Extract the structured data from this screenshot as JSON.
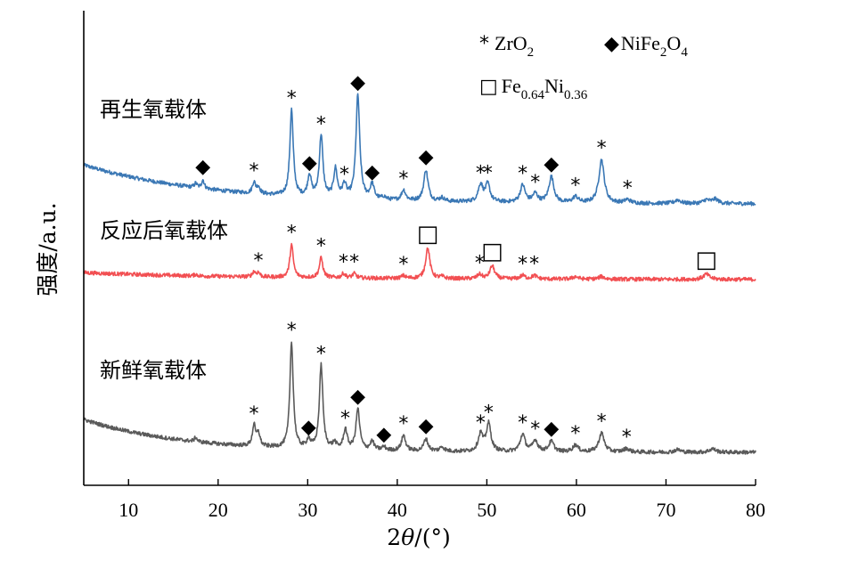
{
  "chart_data": {
    "type": "line",
    "x_axis": {
      "label_prefix": "2",
      "label_var": "θ",
      "label_suffix": "/(°)",
      "xlim": [
        5,
        80
      ],
      "ticks": [
        10,
        20,
        30,
        40,
        50,
        60,
        70,
        80
      ],
      "tick_labels": [
        "10",
        "20",
        "30",
        "40",
        "50",
        "60",
        "70",
        "80"
      ]
    },
    "y_axis": {
      "label": "强度/a.u.",
      "ticks": []
    },
    "legend": {
      "placement": "top-right",
      "entries": [
        {
          "symbol": "*",
          "base": "ZrO",
          "sub": "2",
          "rest": "",
          "sub2": ""
        },
        {
          "symbol": "◆",
          "base": "NiFe",
          "sub": "2",
          "rest": "O",
          "sub2": "4"
        },
        {
          "symbol": "□",
          "base": "Fe",
          "sub": "0.64",
          "rest": "Ni",
          "sub2": "0.36"
        }
      ]
    },
    "markers": {
      "zro2": "*",
      "nife2o4": "◆",
      "feni": "□"
    },
    "series": [
      {
        "name": "再生氧载体",
        "color": "#3b78b5",
        "offset": 2.0,
        "baseline_start": 0.45,
        "baseline_end": 0.0,
        "decay": 0.07,
        "peaks": [
          {
            "x": 17.5,
            "h": 0.05,
            "m": ""
          },
          {
            "x": 18.3,
            "h": 0.1,
            "m": "◆"
          },
          {
            "x": 24.0,
            "h": 0.13,
            "m": "*"
          },
          {
            "x": 24.5,
            "h": 0.08,
            "m": ""
          },
          {
            "x": 28.2,
            "h": 1.0,
            "m": "*"
          },
          {
            "x": 30.2,
            "h": 0.25,
            "m": "◆"
          },
          {
            "x": 31.5,
            "h": 0.72,
            "m": "*"
          },
          {
            "x": 33.1,
            "h": 0.33,
            "m": ""
          },
          {
            "x": 34.1,
            "h": 0.15,
            "m": "*"
          },
          {
            "x": 35.6,
            "h": 1.2,
            "m": "◆"
          },
          {
            "x": 37.2,
            "h": 0.17,
            "m": "◆"
          },
          {
            "x": 38.5,
            "h": 0.03,
            "m": ""
          },
          {
            "x": 40.7,
            "h": 0.12,
            "m": "*"
          },
          {
            "x": 43.2,
            "h": 0.36,
            "m": "◆"
          },
          {
            "x": 45.0,
            "h": 0.04,
            "m": ""
          },
          {
            "x": 49.3,
            "h": 0.2,
            "m": "*"
          },
          {
            "x": 50.1,
            "h": 0.2,
            "m": "*"
          },
          {
            "x": 54.0,
            "h": 0.2,
            "m": "*"
          },
          {
            "x": 55.4,
            "h": 0.1,
            "m": "*"
          },
          {
            "x": 57.2,
            "h": 0.3,
            "m": "◆"
          },
          {
            "x": 59.9,
            "h": 0.07,
            "m": "*"
          },
          {
            "x": 62.8,
            "h": 0.5,
            "m": "*"
          },
          {
            "x": 65.7,
            "h": 0.04,
            "m": "*"
          },
          {
            "x": 71.3,
            "h": 0.04,
            "m": ""
          },
          {
            "x": 74.5,
            "h": 0.04,
            "m": ""
          },
          {
            "x": 75.5,
            "h": 0.05,
            "m": ""
          }
        ]
      },
      {
        "name": "反应后氧载体",
        "color": "#f24f52",
        "offset": 1.0,
        "baseline_start": 0.08,
        "baseline_end": 0.0,
        "decay": 0.05,
        "peaks": [
          {
            "x": 17.5,
            "h": 0.02,
            "m": ""
          },
          {
            "x": 24.0,
            "h": 0.06,
            "m": ""
          },
          {
            "x": 24.5,
            "h": 0.05,
            "m": "*"
          },
          {
            "x": 28.2,
            "h": 0.38,
            "m": "*"
          },
          {
            "x": 31.5,
            "h": 0.23,
            "m": "*"
          },
          {
            "x": 34.0,
            "h": 0.05,
            "m": "*"
          },
          {
            "x": 35.2,
            "h": 0.05,
            "m": "*"
          },
          {
            "x": 40.7,
            "h": 0.03,
            "m": "*"
          },
          {
            "x": 43.4,
            "h": 0.35,
            "m": "□"
          },
          {
            "x": 45.0,
            "h": 0.02,
            "m": ""
          },
          {
            "x": 49.2,
            "h": 0.05,
            "m": "*"
          },
          {
            "x": 50.6,
            "h": 0.15,
            "m": "□"
          },
          {
            "x": 54.0,
            "h": 0.04,
            "m": "*"
          },
          {
            "x": 55.3,
            "h": 0.04,
            "m": "*"
          },
          {
            "x": 59.9,
            "h": 0.03,
            "m": ""
          },
          {
            "x": 62.8,
            "h": 0.03,
            "m": ""
          },
          {
            "x": 74.5,
            "h": 0.06,
            "m": "□"
          }
        ]
      },
      {
        "name": "新鲜氧载体",
        "color": "#5a5a5a",
        "offset": 0.0,
        "baseline_start": 0.38,
        "baseline_end": 0.0,
        "decay": 0.09,
        "peaks": [
          {
            "x": 17.5,
            "h": 0.05,
            "m": ""
          },
          {
            "x": 24.0,
            "h": 0.24,
            "m": "*"
          },
          {
            "x": 24.5,
            "h": 0.15,
            "m": ""
          },
          {
            "x": 28.2,
            "h": 1.23,
            "m": "*"
          },
          {
            "x": 30.1,
            "h": 0.1,
            "m": "◆"
          },
          {
            "x": 31.5,
            "h": 0.97,
            "m": "*"
          },
          {
            "x": 33.0,
            "h": 0.07,
            "m": ""
          },
          {
            "x": 34.2,
            "h": 0.23,
            "m": "*"
          },
          {
            "x": 35.6,
            "h": 0.47,
            "m": "◆"
          },
          {
            "x": 37.2,
            "h": 0.1,
            "m": ""
          },
          {
            "x": 38.5,
            "h": 0.04,
            "m": "◆"
          },
          {
            "x": 40.7,
            "h": 0.18,
            "m": "*"
          },
          {
            "x": 43.2,
            "h": 0.14,
            "m": "◆"
          },
          {
            "x": 45.0,
            "h": 0.05,
            "m": ""
          },
          {
            "x": 49.3,
            "h": 0.2,
            "m": "*"
          },
          {
            "x": 50.2,
            "h": 0.32,
            "m": "*"
          },
          {
            "x": 54.0,
            "h": 0.2,
            "m": "*"
          },
          {
            "x": 55.4,
            "h": 0.13,
            "m": "*"
          },
          {
            "x": 57.2,
            "h": 0.12,
            "m": "◆"
          },
          {
            "x": 59.9,
            "h": 0.08,
            "m": "*"
          },
          {
            "x": 62.8,
            "h": 0.22,
            "m": "*"
          },
          {
            "x": 65.6,
            "h": 0.04,
            "m": "*"
          },
          {
            "x": 71.3,
            "h": 0.03,
            "m": ""
          },
          {
            "x": 75.2,
            "h": 0.04,
            "m": ""
          }
        ]
      }
    ]
  }
}
